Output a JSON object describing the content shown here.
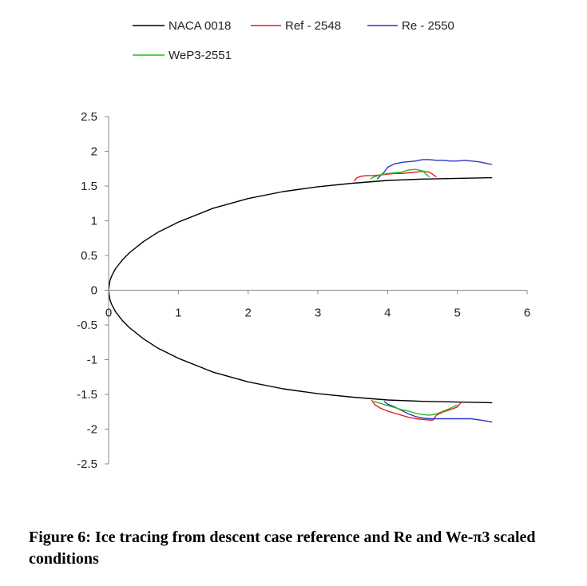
{
  "caption": "Figure 6: Ice tracing from descent case reference and Re and We-π3 scaled conditions",
  "chart_data": {
    "type": "line",
    "title": "",
    "xlabel": "",
    "ylabel": "",
    "xlim": [
      0,
      6
    ],
    "ylim": [
      -2.5,
      2.5
    ],
    "x_ticks": [
      "0",
      "1",
      "2",
      "3",
      "4",
      "5",
      "6"
    ],
    "y_ticks": [
      "2.5",
      "2",
      "1.5",
      "1",
      "0.5",
      "0",
      "-0.5",
      "-1",
      "-1.5",
      "-2",
      "-2.5"
    ],
    "grid": false,
    "legend_position": "top",
    "series": [
      {
        "name": "NACA 0018",
        "color": "#000000",
        "x": [
          5.5,
          5.0,
          4.5,
          4.0,
          3.5,
          3.0,
          2.5,
          2.0,
          1.5,
          1.0,
          0.7,
          0.5,
          0.3,
          0.2,
          0.1,
          0.05,
          0.02,
          0.0,
          0.02,
          0.05,
          0.1,
          0.2,
          0.3,
          0.5,
          0.7,
          1.0,
          1.5,
          2.0,
          2.5,
          3.0,
          3.5,
          4.0,
          4.5,
          5.0,
          5.5
        ],
        "y": [
          1.62,
          1.61,
          1.6,
          1.58,
          1.54,
          1.49,
          1.42,
          1.32,
          1.18,
          0.98,
          0.83,
          0.7,
          0.54,
          0.44,
          0.31,
          0.22,
          0.14,
          0.0,
          -0.14,
          -0.22,
          -0.31,
          -0.44,
          -0.54,
          -0.7,
          -0.83,
          -0.98,
          -1.18,
          -1.32,
          -1.42,
          -1.49,
          -1.54,
          -1.58,
          -1.6,
          -1.61,
          -1.62
        ]
      },
      {
        "name": "Ref - 2548",
        "color": "#e02020",
        "segments": [
          {
            "x": [
              3.52,
              3.56,
              3.62,
              3.7,
              3.8,
              3.9,
              4.0,
              4.1,
              4.2,
              4.3,
              4.4,
              4.5,
              4.6,
              4.7
            ],
            "y": [
              1.57,
              1.62,
              1.64,
              1.65,
              1.65,
              1.66,
              1.67,
              1.68,
              1.68,
              1.69,
              1.7,
              1.71,
              1.7,
              1.63
            ]
          },
          {
            "x": [
              3.77,
              3.82,
              3.9,
              4.0,
              4.1,
              4.2,
              4.3,
              4.4,
              4.5,
              4.6,
              4.65,
              4.7,
              4.8,
              4.9,
              5.0,
              5.05
            ],
            "y": [
              -1.58,
              -1.65,
              -1.7,
              -1.74,
              -1.77,
              -1.8,
              -1.83,
              -1.85,
              -1.86,
              -1.87,
              -1.87,
              -1.8,
              -1.75,
              -1.72,
              -1.68,
              -1.62
            ]
          }
        ]
      },
      {
        "name": "Re - 2550",
        "color": "#3232c8",
        "segments": [
          {
            "x": [
              3.85,
              3.9,
              3.95,
              4.0,
              4.1,
              4.2,
              4.3,
              4.4,
              4.5,
              4.6,
              4.7,
              4.8,
              4.9,
              5.0,
              5.1,
              5.2,
              5.3,
              5.4,
              5.5
            ],
            "y": [
              1.6,
              1.65,
              1.7,
              1.77,
              1.82,
              1.84,
              1.85,
              1.86,
              1.88,
              1.88,
              1.87,
              1.87,
              1.86,
              1.86,
              1.87,
              1.86,
              1.85,
              1.83,
              1.81
            ]
          },
          {
            "x": [
              3.95,
              4.0,
              4.1,
              4.2,
              4.3,
              4.4,
              4.5,
              4.6,
              4.7,
              4.8,
              5.0,
              5.2,
              5.4,
              5.5
            ],
            "y": [
              -1.6,
              -1.64,
              -1.68,
              -1.73,
              -1.78,
              -1.82,
              -1.84,
              -1.85,
              -1.85,
              -1.85,
              -1.85,
              -1.85,
              -1.88,
              -1.9
            ]
          }
        ]
      },
      {
        "name": "WeP3-2551",
        "color": "#22bb22",
        "segments": [
          {
            "x": [
              3.75,
              3.8,
              3.9,
              4.0,
              4.1,
              4.2,
              4.3,
              4.4,
              4.5,
              4.55,
              4.6
            ],
            "y": [
              1.6,
              1.63,
              1.66,
              1.68,
              1.69,
              1.7,
              1.73,
              1.74,
              1.72,
              1.67,
              1.63
            ]
          },
          {
            "x": [
              3.8,
              3.9,
              4.0,
              4.1,
              4.2,
              4.3,
              4.4,
              4.5,
              4.6,
              4.7,
              4.8,
              4.9,
              5.0
            ],
            "y": [
              -1.6,
              -1.63,
              -1.66,
              -1.69,
              -1.72,
              -1.74,
              -1.77,
              -1.79,
              -1.8,
              -1.78,
              -1.74,
              -1.7,
              -1.65
            ]
          }
        ]
      }
    ]
  }
}
